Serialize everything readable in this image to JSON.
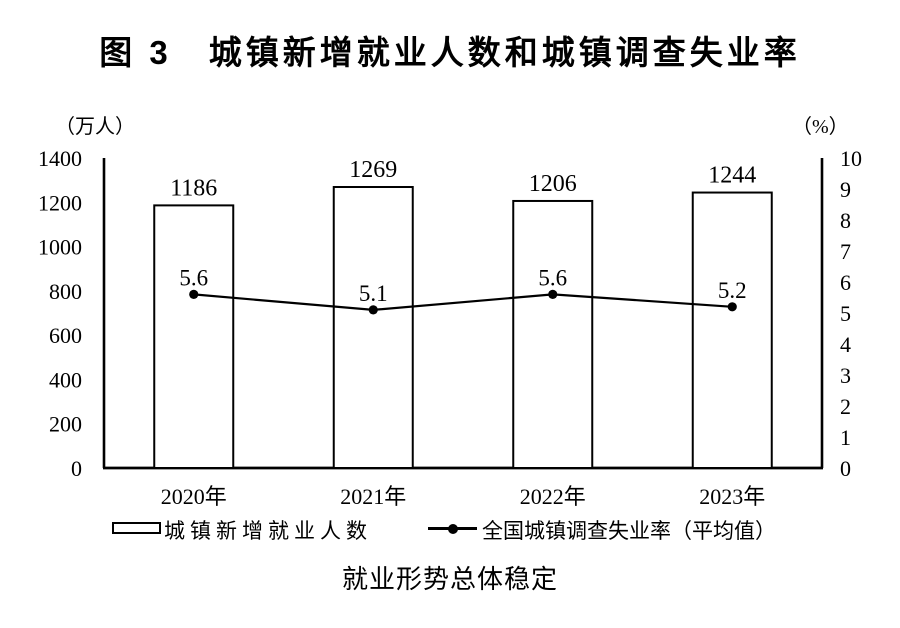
{
  "figure": {
    "title": "图 3　城镇新增就业人数和城镇调查失业率",
    "caption": "就业形势总体稳定"
  },
  "colors": {
    "ink": "#000000",
    "background": "#ffffff"
  },
  "chart_data": {
    "type": "bar",
    "categories": [
      "2020年",
      "2021年",
      "2022年",
      "2023年"
    ],
    "series": [
      {
        "name": "城镇新增就业人数",
        "type": "bar",
        "axis": "left",
        "values": [
          1186,
          1269,
          1206,
          1244
        ]
      },
      {
        "name": "全国城镇调查失业率（平均值）",
        "type": "line",
        "axis": "right",
        "values": [
          5.6,
          5.1,
          5.6,
          5.2
        ]
      }
    ],
    "title": "图 3　城镇新增就业人数和城镇调查失业率",
    "caption": "就业形势总体稳定",
    "left_axis": {
      "label": "（万人）",
      "range": [
        0,
        1400
      ],
      "ticks": [
        0,
        200,
        400,
        600,
        800,
        1000,
        1200,
        1400
      ]
    },
    "right_axis": {
      "label": "（%）",
      "range": [
        0,
        10
      ],
      "ticks": [
        0,
        1,
        2,
        3,
        4,
        5,
        6,
        7,
        8,
        9,
        10
      ]
    },
    "grid": false,
    "legend_position": "bottom"
  }
}
